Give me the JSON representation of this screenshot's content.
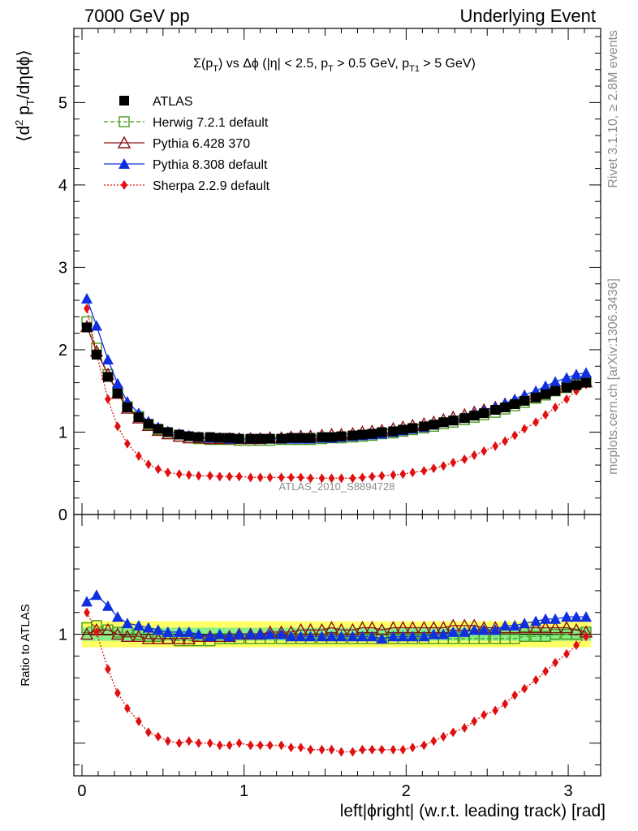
{
  "header": {
    "left": "7000 GeV pp",
    "right": "Underlying Event"
  },
  "side_text": {
    "rivet": "Rivet 3.1.10, ≥ 2.8M events",
    "mcplots": "mcplots.cern.ch [arXiv:1306.3436]"
  },
  "colors": {
    "atlas": "#000000",
    "herwig": "#4a9a1a",
    "pythia6": "#8b1010",
    "pythia8": "#1030e0",
    "sherpa": "#e01010",
    "band_yellow": "#ffff66",
    "band_green": "#88ee88"
  },
  "chart_data": [
    {
      "type": "scatter",
      "panel": "main",
      "title": "Σ(pT) vs Δϕ (|η| < 2.5, pT > 0.5 GeV, pT1 > 5 GeV)",
      "watermark": "ATLAS_2010_S8894728",
      "xlabel": "left|ϕright| (w.r.t. leading track) [rad]",
      "ylabel": "⟨d² pT/dηdϕ⟩",
      "xlim": [
        -0.05,
        3.2
      ],
      "ylim": [
        0,
        5.9
      ],
      "yticks": [
        "0",
        "1",
        "2",
        "3",
        "4",
        "5"
      ],
      "xticks": [
        "0",
        "1",
        "2",
        "3"
      ],
      "legend_position": "top-left",
      "x": [
        0.03,
        0.09,
        0.16,
        0.22,
        0.28,
        0.35,
        0.41,
        0.47,
        0.53,
        0.6,
        0.66,
        0.72,
        0.79,
        0.85,
        0.91,
        0.97,
        1.04,
        1.1,
        1.16,
        1.23,
        1.29,
        1.35,
        1.41,
        1.48,
        1.54,
        1.6,
        1.67,
        1.73,
        1.79,
        1.85,
        1.92,
        1.98,
        2.04,
        2.11,
        2.17,
        2.23,
        2.29,
        2.36,
        2.42,
        2.48,
        2.55,
        2.61,
        2.67,
        2.73,
        2.8,
        2.86,
        2.92,
        2.99,
        3.05,
        3.11
      ],
      "series": [
        {
          "name": "ATLAS",
          "marker": "filled-square",
          "values": [
            2.27,
            1.94,
            1.67,
            1.47,
            1.3,
            1.18,
            1.1,
            1.04,
            1.0,
            0.97,
            0.95,
            0.94,
            0.94,
            0.93,
            0.93,
            0.92,
            0.92,
            0.92,
            0.92,
            0.92,
            0.93,
            0.93,
            0.93,
            0.94,
            0.94,
            0.95,
            0.96,
            0.97,
            0.98,
            1.0,
            1.01,
            1.03,
            1.05,
            1.07,
            1.09,
            1.12,
            1.14,
            1.17,
            1.2,
            1.23,
            1.27,
            1.3,
            1.34,
            1.38,
            1.42,
            1.46,
            1.5,
            1.54,
            1.57,
            1.6
          ]
        },
        {
          "name": "Herwig 7.2.1 default",
          "marker": "open-square",
          "line": "dashed",
          "values": [
            2.34,
            2.02,
            1.7,
            1.49,
            1.31,
            1.19,
            1.09,
            1.03,
            0.98,
            0.95,
            0.93,
            0.92,
            0.91,
            0.91,
            0.91,
            0.9,
            0.9,
            0.9,
            0.9,
            0.91,
            0.91,
            0.91,
            0.91,
            0.92,
            0.93,
            0.93,
            0.94,
            0.95,
            0.96,
            0.98,
            0.99,
            1.01,
            1.03,
            1.05,
            1.07,
            1.1,
            1.12,
            1.15,
            1.18,
            1.21,
            1.24,
            1.28,
            1.32,
            1.36,
            1.41,
            1.45,
            1.5,
            1.54,
            1.58,
            1.61
          ]
        },
        {
          "name": "Pythia 6.428 370",
          "marker": "open-triangle",
          "line": "solid",
          "values": [
            2.28,
            1.98,
            1.7,
            1.47,
            1.29,
            1.17,
            1.08,
            1.02,
            0.98,
            0.95,
            0.93,
            0.93,
            0.92,
            0.92,
            0.92,
            0.92,
            0.92,
            0.92,
            0.93,
            0.93,
            0.94,
            0.95,
            0.95,
            0.96,
            0.97,
            0.97,
            0.98,
            1.0,
            1.01,
            1.02,
            1.04,
            1.06,
            1.08,
            1.1,
            1.12,
            1.15,
            1.18,
            1.21,
            1.24,
            1.27,
            1.3,
            1.34,
            1.38,
            1.42,
            1.46,
            1.5,
            1.54,
            1.58,
            1.6,
            1.61
          ]
        },
        {
          "name": "Pythia 8.308 default",
          "marker": "filled-triangle",
          "line": "solid",
          "values": [
            2.62,
            2.29,
            1.88,
            1.59,
            1.37,
            1.23,
            1.13,
            1.06,
            1.01,
            0.98,
            0.96,
            0.94,
            0.93,
            0.93,
            0.92,
            0.92,
            0.92,
            0.92,
            0.92,
            0.92,
            0.92,
            0.92,
            0.92,
            0.93,
            0.93,
            0.94,
            0.95,
            0.96,
            0.97,
            0.98,
            1.0,
            1.02,
            1.04,
            1.06,
            1.09,
            1.12,
            1.15,
            1.18,
            1.22,
            1.26,
            1.3,
            1.35,
            1.4,
            1.45,
            1.5,
            1.56,
            1.61,
            1.66,
            1.7,
            1.72
          ]
        },
        {
          "name": "Sherpa 2.2.9 default",
          "marker": "filled-diamond",
          "line": "dotted",
          "values": [
            2.5,
            1.95,
            1.4,
            1.07,
            0.86,
            0.71,
            0.61,
            0.55,
            0.51,
            0.49,
            0.48,
            0.47,
            0.47,
            0.46,
            0.46,
            0.46,
            0.45,
            0.45,
            0.45,
            0.45,
            0.45,
            0.45,
            0.44,
            0.44,
            0.44,
            0.44,
            0.44,
            0.45,
            0.46,
            0.47,
            0.48,
            0.49,
            0.51,
            0.53,
            0.56,
            0.59,
            0.63,
            0.67,
            0.72,
            0.77,
            0.83,
            0.89,
            0.96,
            1.04,
            1.12,
            1.21,
            1.3,
            1.4,
            1.5,
            1.58
          ]
        }
      ]
    },
    {
      "type": "scatter",
      "panel": "ratio",
      "ylabel": "Ratio to ATLAS",
      "ylim": [
        0.35,
        1.55
      ],
      "yticks": [
        "1"
      ],
      "xticks": [
        "0",
        "1",
        "2",
        "3"
      ],
      "band": {
        "yellow": [
          0.94,
          1.06
        ],
        "green": [
          0.97,
          1.03
        ]
      },
      "series": [
        {
          "name": "Herwig 7.2.1 default",
          "values": [
            1.03,
            1.04,
            1.02,
            1.01,
            1.01,
            1.0,
            0.99,
            0.99,
            0.98,
            0.97,
            0.97,
            0.97,
            0.97,
            0.98,
            0.98,
            0.98,
            0.98,
            0.98,
            0.98,
            0.98,
            0.98,
            0.98,
            0.98,
            0.98,
            0.98,
            0.98,
            0.98,
            0.98,
            0.98,
            0.98,
            0.98,
            0.98,
            0.98,
            0.98,
            0.98,
            0.98,
            0.98,
            0.98,
            0.98,
            0.98,
            0.98,
            0.98,
            0.98,
            0.99,
            0.99,
            0.99,
            1.0,
            1.0,
            1.0,
            1.01
          ]
        },
        {
          "name": "Pythia 6.428 370",
          "values": [
            1.0,
            1.02,
            1.02,
            1.0,
            0.99,
            0.99,
            0.98,
            0.98,
            0.98,
            0.98,
            0.98,
            0.99,
            0.99,
            0.99,
            0.99,
            1.0,
            1.0,
            1.0,
            1.01,
            1.01,
            1.01,
            1.02,
            1.02,
            1.02,
            1.03,
            1.02,
            1.02,
            1.03,
            1.03,
            1.02,
            1.03,
            1.03,
            1.03,
            1.03,
            1.03,
            1.03,
            1.04,
            1.04,
            1.04,
            1.03,
            1.03,
            1.03,
            1.03,
            1.03,
            1.03,
            1.03,
            1.03,
            1.03,
            1.02,
            1.01
          ]
        },
        {
          "name": "Pythia 8.308 default",
          "values": [
            1.15,
            1.18,
            1.13,
            1.08,
            1.05,
            1.04,
            1.03,
            1.02,
            1.01,
            1.01,
            1.01,
            1.0,
            0.99,
            1.0,
            0.99,
            1.0,
            1.0,
            1.0,
            1.0,
            1.0,
            0.99,
            0.99,
            0.99,
            0.99,
            0.99,
            0.99,
            0.99,
            0.99,
            0.99,
            0.98,
            0.99,
            0.99,
            0.99,
            0.99,
            1.0,
            1.0,
            1.01,
            1.01,
            1.02,
            1.02,
            1.02,
            1.04,
            1.04,
            1.05,
            1.06,
            1.07,
            1.07,
            1.08,
            1.08,
            1.08
          ]
        },
        {
          "name": "Sherpa 2.2.9 default",
          "values": [
            1.1,
            1.01,
            0.84,
            0.73,
            0.66,
            0.6,
            0.55,
            0.53,
            0.51,
            0.5,
            0.51,
            0.5,
            0.5,
            0.49,
            0.49,
            0.5,
            0.49,
            0.49,
            0.49,
            0.49,
            0.48,
            0.48,
            0.47,
            0.47,
            0.47,
            0.46,
            0.46,
            0.47,
            0.47,
            0.47,
            0.47,
            0.47,
            0.48,
            0.49,
            0.51,
            0.53,
            0.55,
            0.57,
            0.6,
            0.63,
            0.65,
            0.68,
            0.72,
            0.75,
            0.79,
            0.83,
            0.87,
            0.91,
            0.95,
            0.99
          ]
        }
      ]
    }
  ]
}
